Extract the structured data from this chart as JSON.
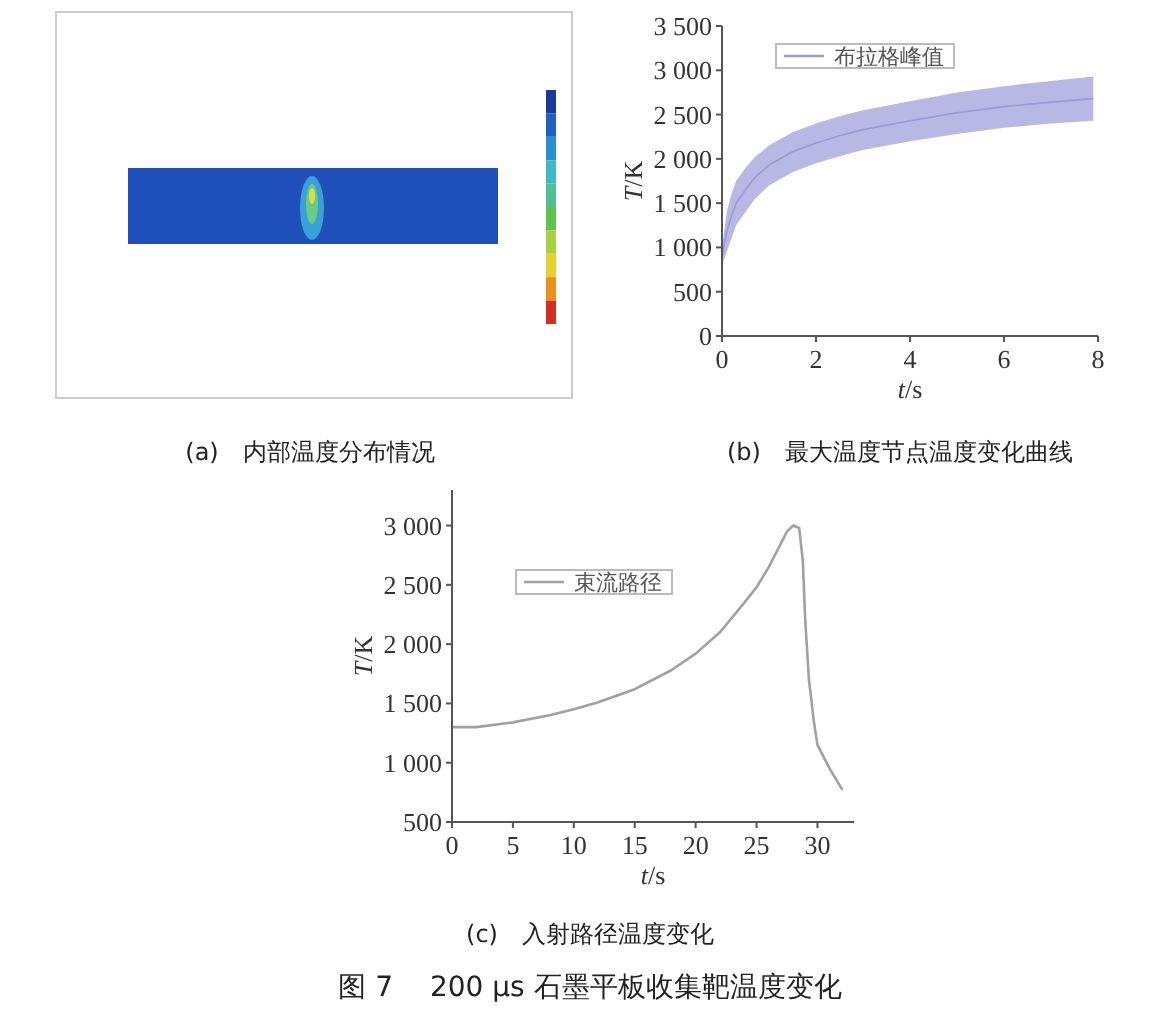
{
  "chart_data": [
    {
      "type": "other",
      "title": "(a)　内部温度分布情况"
    },
    {
      "type": "line",
      "title": "(b)　最大温度节点温度变化曲线",
      "xlabel": "*t*/s",
      "ylabel": "*T*/K",
      "legend": "top left",
      "xlim": [
        0,
        8
      ],
      "xticks": [
        0,
        2,
        4,
        6,
        8
      ],
      "ylim": [
        0,
        3500
      ],
      "yticks": [
        {
          "value": 0,
          "label": "0"
        },
        {
          "value": 500,
          "label": "500"
        },
        {
          "value": 1000,
          "label": "1 000"
        },
        {
          "value": 1500,
          "label": "1 500"
        },
        {
          "value": 2000,
          "label": "2 000"
        },
        {
          "value": 2500,
          "label": "2 500"
        },
        {
          "value": 3000,
          "label": "3 000"
        },
        {
          "value": 3500,
          "label": "3 500"
        }
      ],
      "series": [
        {
          "name": "布拉格峰值",
          "color": "#9a9ad8",
          "x": [
            0,
            0.1,
            0.2,
            0.3,
            0.5,
            0.7,
            1,
            1.5,
            2,
            2.5,
            3,
            4,
            5,
            6,
            7,
            7.9
          ],
          "values": [
            900,
            1180,
            1350,
            1500,
            1650,
            1790,
            1930,
            2080,
            2180,
            2260,
            2330,
            2430,
            2520,
            2590,
            2640,
            2680
          ],
          "upper": [
            1000,
            1400,
            1600,
            1750,
            1900,
            2020,
            2150,
            2300,
            2400,
            2480,
            2550,
            2650,
            2750,
            2820,
            2880,
            2930
          ],
          "lower": [
            800,
            950,
            1100,
            1250,
            1400,
            1550,
            1700,
            1850,
            1950,
            2030,
            2100,
            2200,
            2280,
            2350,
            2400,
            2430
          ]
        }
      ]
    },
    {
      "type": "line",
      "title": "(c)　入射路径温度变化",
      "xlabel": "*t*/s",
      "ylabel": "*T*/K",
      "legend": "top left",
      "annotations": [
        "图 7　 200 μs 石墨平板收集靶温度变化"
      ],
      "xlim": [
        0,
        33
      ],
      "xticks": [
        0,
        5,
        10,
        15,
        20,
        25,
        30
      ],
      "ylim": [
        500,
        3300
      ],
      "yticks": [
        {
          "value": 500,
          "label": "500"
        },
        {
          "value": 1000,
          "label": "1 000"
        },
        {
          "value": 1500,
          "label": "1 500"
        },
        {
          "value": 2000,
          "label": "2 000"
        },
        {
          "value": 2500,
          "label": "2 500"
        },
        {
          "value": 3000,
          "label": "3 000"
        }
      ],
      "series": [
        {
          "name": "束流路径",
          "color": "#a0a0a0",
          "x": [
            0,
            2,
            5,
            8,
            10,
            12,
            15,
            18,
            20,
            22,
            24,
            25,
            26,
            27,
            27.5,
            28,
            28.5,
            28.8,
            29,
            29.3,
            29.7,
            30,
            31,
            32
          ],
          "values": [
            1300,
            1300,
            1340,
            1400,
            1450,
            1510,
            1620,
            1780,
            1920,
            2100,
            2350,
            2480,
            2650,
            2850,
            2950,
            3000,
            2980,
            2700,
            2200,
            1700,
            1350,
            1150,
            950,
            780
          ]
        }
      ]
    }
  ]
}
